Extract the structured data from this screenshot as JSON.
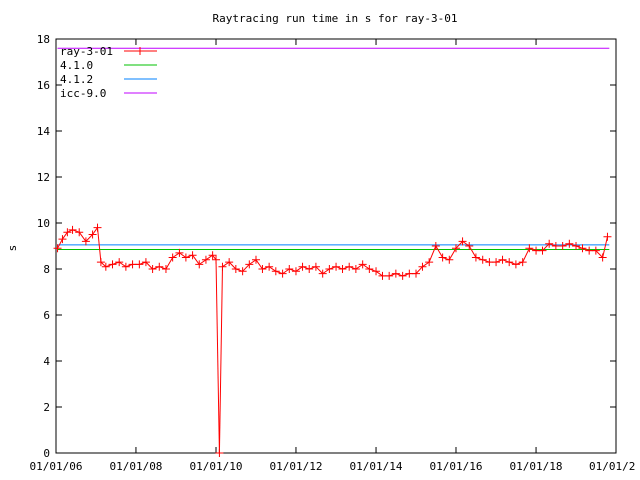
{
  "chart_data": {
    "type": "scatter",
    "title": "Raytracing run time in s for ray-3-01",
    "xlabel": "",
    "ylabel": "s",
    "ylim": [
      0,
      18
    ],
    "yticks": [
      0,
      2,
      4,
      6,
      8,
      10,
      12,
      14,
      16,
      18
    ],
    "xlim": [
      "2006-01-01",
      "2020-01-01"
    ],
    "xticks": [
      "01/01/06",
      "01/01/08",
      "01/01/10",
      "01/01/12",
      "01/01/14",
      "01/01/16",
      "01/01/18",
      "01/01/2"
    ],
    "xtick_dates": [
      "2006-01-01",
      "2008-01-01",
      "2010-01-01",
      "2012-01-01",
      "2014-01-01",
      "2016-01-01",
      "2018-01-01",
      "2020-01-01"
    ],
    "grid": false,
    "legend_position": "top-left",
    "series": [
      {
        "name": "ray-3-01",
        "style": "points",
        "color": "#ff0000",
        "points": [
          [
            "2006-01-15",
            8.9
          ],
          [
            "2006-03-01",
            9.3
          ],
          [
            "2006-04-15",
            9.6
          ],
          [
            "2006-06-01",
            9.7
          ],
          [
            "2006-08-01",
            9.6
          ],
          [
            "2006-10-01",
            9.2
          ],
          [
            "2006-12-01",
            9.5
          ],
          [
            "2007-01-15",
            9.8
          ],
          [
            "2007-02-15",
            8.3
          ],
          [
            "2007-04-01",
            8.1
          ],
          [
            "2007-06-01",
            8.2
          ],
          [
            "2007-08-01",
            8.3
          ],
          [
            "2007-10-01",
            8.1
          ],
          [
            "2007-12-01",
            8.2
          ],
          [
            "2008-02-01",
            8.2
          ],
          [
            "2008-04-01",
            8.3
          ],
          [
            "2008-06-01",
            8.0
          ],
          [
            "2008-08-01",
            8.1
          ],
          [
            "2008-10-01",
            8.0
          ],
          [
            "2008-12-01",
            8.5
          ],
          [
            "2009-02-01",
            8.7
          ],
          [
            "2009-04-01",
            8.5
          ],
          [
            "2009-06-01",
            8.6
          ],
          [
            "2009-08-01",
            8.2
          ],
          [
            "2009-10-01",
            8.4
          ],
          [
            "2009-12-01",
            8.6
          ],
          [
            "2010-01-01",
            8.4
          ],
          [
            "2010-02-01",
            0.0
          ],
          [
            "2010-03-01",
            8.1
          ],
          [
            "2010-05-01",
            8.3
          ],
          [
            "2010-07-01",
            8.0
          ],
          [
            "2010-09-01",
            7.9
          ],
          [
            "2010-11-01",
            8.2
          ],
          [
            "2011-01-01",
            8.4
          ],
          [
            "2011-03-01",
            8.0
          ],
          [
            "2011-05-01",
            8.1
          ],
          [
            "2011-07-01",
            7.9
          ],
          [
            "2011-09-01",
            7.8
          ],
          [
            "2011-11-01",
            8.0
          ],
          [
            "2012-01-01",
            7.9
          ],
          [
            "2012-03-01",
            8.1
          ],
          [
            "2012-05-01",
            8.0
          ],
          [
            "2012-07-01",
            8.1
          ],
          [
            "2012-09-01",
            7.8
          ],
          [
            "2012-11-01",
            8.0
          ],
          [
            "2013-01-01",
            8.1
          ],
          [
            "2013-03-01",
            8.0
          ],
          [
            "2013-05-01",
            8.1
          ],
          [
            "2013-07-01",
            8.0
          ],
          [
            "2013-09-01",
            8.2
          ],
          [
            "2013-11-01",
            8.0
          ],
          [
            "2014-01-01",
            7.9
          ],
          [
            "2014-03-01",
            7.7
          ],
          [
            "2014-05-01",
            7.7
          ],
          [
            "2014-07-01",
            7.8
          ],
          [
            "2014-09-01",
            7.7
          ],
          [
            "2014-11-01",
            7.8
          ],
          [
            "2015-01-01",
            7.8
          ],
          [
            "2015-03-01",
            8.1
          ],
          [
            "2015-05-01",
            8.3
          ],
          [
            "2015-07-01",
            9.0
          ],
          [
            "2015-09-01",
            8.5
          ],
          [
            "2015-11-01",
            8.4
          ],
          [
            "2016-01-01",
            8.9
          ],
          [
            "2016-03-01",
            9.2
          ],
          [
            "2016-05-01",
            9.0
          ],
          [
            "2016-07-01",
            8.5
          ],
          [
            "2016-09-01",
            8.4
          ],
          [
            "2016-11-01",
            8.3
          ],
          [
            "2017-01-01",
            8.3
          ],
          [
            "2017-03-01",
            8.4
          ],
          [
            "2017-05-01",
            8.3
          ],
          [
            "2017-07-01",
            8.2
          ],
          [
            "2017-09-01",
            8.3
          ],
          [
            "2017-11-01",
            8.9
          ],
          [
            "2018-01-01",
            8.8
          ],
          [
            "2018-03-01",
            8.8
          ],
          [
            "2018-05-01",
            9.1
          ],
          [
            "2018-07-01",
            9.0
          ],
          [
            "2018-09-01",
            9.0
          ],
          [
            "2018-11-01",
            9.1
          ],
          [
            "2019-01-01",
            9.0
          ],
          [
            "2019-03-01",
            8.9
          ],
          [
            "2019-05-01",
            8.8
          ],
          [
            "2019-07-01",
            8.8
          ],
          [
            "2019-09-01",
            8.5
          ],
          [
            "2019-10-15",
            9.4
          ]
        ]
      },
      {
        "name": "4.1.0",
        "style": "line",
        "color": "#00c000",
        "value": 8.85,
        "x": [
          "2006-01-15",
          "2019-11-01"
        ]
      },
      {
        "name": "4.1.2",
        "style": "line",
        "color": "#0080ff",
        "value": 9.05,
        "x": [
          "2006-01-15",
          "2019-11-01"
        ]
      },
      {
        "name": "icc-9.0",
        "style": "line",
        "color": "#c000ff",
        "value": 17.6,
        "x": [
          "2006-01-15",
          "2019-11-01"
        ]
      }
    ]
  }
}
